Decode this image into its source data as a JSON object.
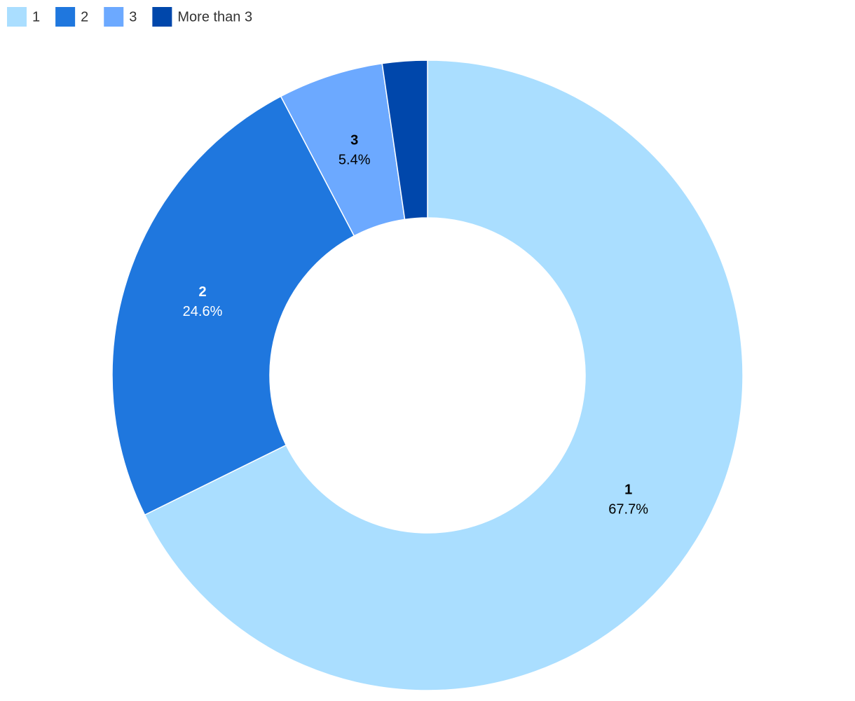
{
  "chart_data": {
    "type": "donut",
    "categories": [
      "1",
      "2",
      "3",
      "More than 3"
    ],
    "values": [
      67.7,
      24.6,
      5.4,
      2.3
    ],
    "value_labels": [
      "67.7%",
      "24.6%",
      "5.4%",
      null
    ],
    "colors": [
      "#aadeff",
      "#1f77de",
      "#6ca9ff",
      "#0047ab"
    ],
    "legend": "top-left"
  }
}
